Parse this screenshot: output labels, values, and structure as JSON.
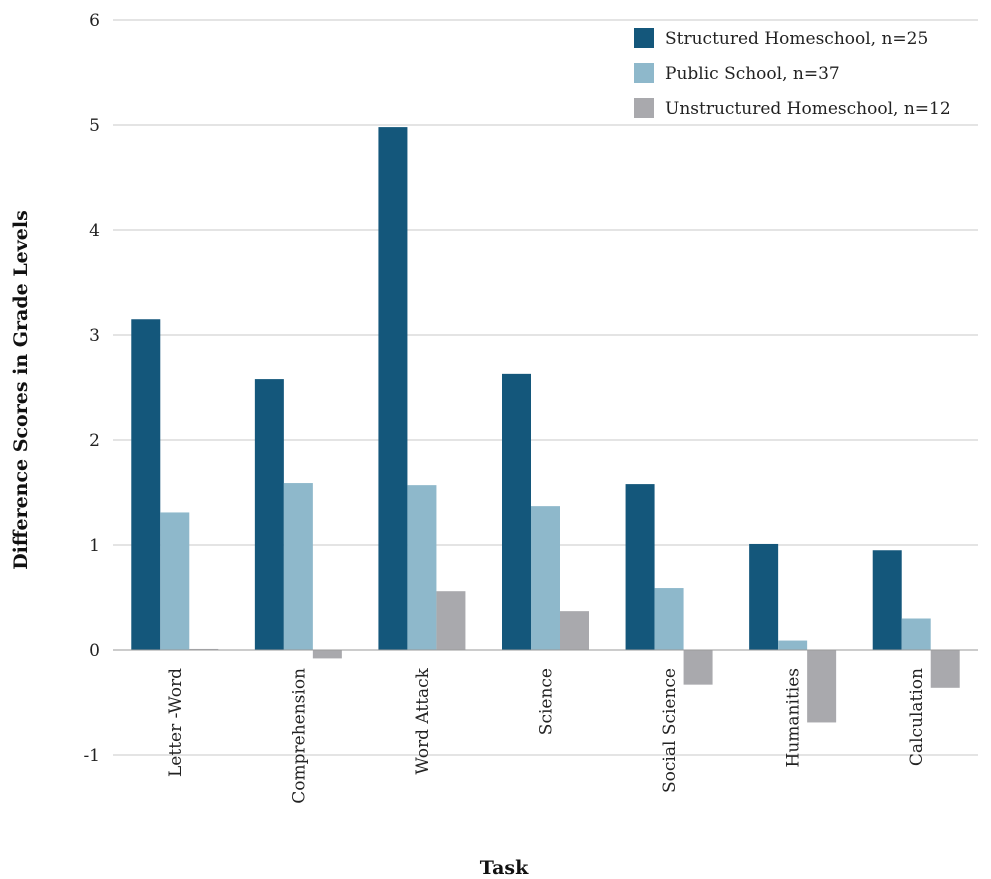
{
  "chart_data": {
    "type": "bar",
    "title": "",
    "xlabel": "Task",
    "ylabel": "Difference Scores in Grade Levels",
    "ylim": [
      -1,
      6
    ],
    "yticks": [
      "-1",
      "0",
      "1",
      "2",
      "3",
      "4",
      "5",
      "6"
    ],
    "grid": true,
    "legend_position": "top-right",
    "categories": [
      "Letter -Word",
      "Comprehension",
      "Word Attack",
      "Science",
      "Social Science",
      "Humanities",
      "Calculation"
    ],
    "series": [
      {
        "name": "Structured Homeschool, n=25",
        "color": "#14577b",
        "values": [
          3.15,
          2.58,
          4.98,
          2.63,
          1.58,
          1.01,
          0.95
        ]
      },
      {
        "name": "Public School, n=37",
        "color": "#8eb8cb",
        "values": [
          1.31,
          1.59,
          1.57,
          1.37,
          0.59,
          0.09,
          0.3
        ]
      },
      {
        "name": "Unstructured Homeschool, n=12",
        "color": "#a9a9ad",
        "values": [
          0.01,
          -0.08,
          0.56,
          0.37,
          -0.33,
          -0.69,
          -0.36
        ]
      }
    ]
  }
}
